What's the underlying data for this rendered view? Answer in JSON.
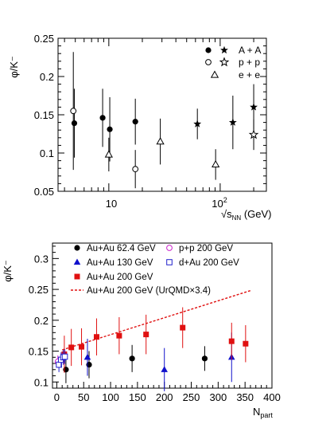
{
  "chart_data": [
    {
      "type": "scatter",
      "title": "",
      "ylabel": "φ/K⁻",
      "xlabel_prefix": "√s",
      "xlabel_sub": "NN",
      "xlabel_suffix": " (GeV)",
      "x_scale": "log",
      "xlim": [
        3.5,
        260
      ],
      "ylim": [
        0.05,
        0.25
      ],
      "y_ticks": [
        0.05,
        0.1,
        0.15,
        0.2,
        0.25
      ],
      "y_tick_labels": [
        "0.05",
        "0.1",
        "0.15",
        "0.2",
        "0.25"
      ],
      "x_tick_labels": [
        {
          "value": 10,
          "label": "10"
        },
        {
          "value": 100,
          "label": "10",
          "sup": "2"
        }
      ],
      "legend": {
        "position": "top-right",
        "rows": [
          {
            "label": "A + A",
            "markers": [
              "filled-circle",
              "filled-star"
            ]
          },
          {
            "label": "p + p",
            "markers": [
              "open-circle",
              "open-star"
            ]
          },
          {
            "label": "e + e",
            "markers": [
              "open-triangle"
            ]
          }
        ]
      },
      "series": [
        {
          "name": "A + A",
          "marker": "filled-circle",
          "points": [
            {
              "x": 4.9,
              "y": 0.139,
              "err": 0.045
            },
            {
              "x": 8.8,
              "y": 0.146,
              "err": 0.038
            },
            {
              "x": 10.2,
              "y": 0.131,
              "err": 0.042
            },
            {
              "x": 17.3,
              "y": 0.141,
              "err": 0.03
            }
          ]
        },
        {
          "name": "A + A",
          "marker": "filled-star",
          "points": [
            {
              "x": 62.4,
              "y": 0.138,
              "err": 0.02
            },
            {
              "x": 130,
              "y": 0.14,
              "err": 0.035
            },
            {
              "x": 200,
              "y": 0.16,
              "err": 0.03
            }
          ]
        },
        {
          "name": "p + p",
          "marker": "open-circle",
          "points": [
            {
              "x": 4.8,
              "y": 0.155,
              "err": 0.077
            },
            {
              "x": 17.3,
              "y": 0.079,
              "err": 0.025
            }
          ]
        },
        {
          "name": "p + p",
          "marker": "open-star",
          "points": [
            {
              "x": 200,
              "y": 0.124,
              "err": 0.02
            }
          ]
        },
        {
          "name": "e + e",
          "marker": "open-triangle",
          "points": [
            {
              "x": 10,
              "y": 0.098,
              "err": 0.022
            },
            {
              "x": 29,
              "y": 0.115,
              "err": 0.03
            },
            {
              "x": 91,
              "y": 0.085,
              "err": 0.02
            }
          ]
        }
      ]
    },
    {
      "type": "scatter",
      "title": "",
      "ylabel": "φ/K⁻",
      "xlabel_main": "N",
      "xlabel_sub": "part",
      "xlim": [
        -8,
        400
      ],
      "ylim": [
        0.09,
        0.325
      ],
      "x_ticks": [
        0,
        50,
        100,
        150,
        200,
        250,
        300,
        350,
        400
      ],
      "x_tick_labels": [
        "0",
        "50",
        "100",
        "150",
        "200",
        "250",
        "300",
        "350",
        "400"
      ],
      "y_ticks": [
        0.1,
        0.15,
        0.2,
        0.25,
        0.3
      ],
      "y_tick_labels": [
        "0.1",
        "0.15",
        "0.2",
        "0.25",
        "0.3"
      ],
      "legend": {
        "position": "top",
        "rows": [
          {
            "label": "Au+Au 62.4 GeV",
            "marker": "filled-circle",
            "color": "#000000"
          },
          {
            "label": "Au+Au 130 GeV",
            "marker": "filled-triangle",
            "color": "#1010cc"
          },
          {
            "label": "Au+Au 200 GeV",
            "marker": "filled-square",
            "color": "#e01010"
          },
          {
            "label": "Au+Au 200 GeV (UrQMD×3.4)",
            "marker": "dashed-line",
            "color": "#e01010"
          },
          {
            "label": "p+p 200 GeV",
            "marker": "open-circle",
            "color": "#cc22cc"
          },
          {
            "label": "d+Au 200 GeV",
            "marker": "open-square",
            "color": "#2020cc"
          }
        ]
      },
      "series": [
        {
          "name": "Au+Au 62.4 GeV",
          "marker": "filled-circle",
          "color": "#000000",
          "points": [
            {
              "x": 17,
              "y": 0.12,
              "err": 0.022
            },
            {
              "x": 60,
              "y": 0.128,
              "err": 0.022
            },
            {
              "x": 140,
              "y": 0.138,
              "err": 0.022
            },
            {
              "x": 275,
              "y": 0.138,
              "err": 0.02
            }
          ]
        },
        {
          "name": "Au+Au 130 GeV",
          "marker": "filled-triangle",
          "color": "#1010cc",
          "points": [
            {
              "x": 57,
              "y": 0.14,
              "err": 0.03
            },
            {
              "x": 200,
              "y": 0.12,
              "err": 0.035
            },
            {
              "x": 325,
              "y": 0.14,
              "err": 0.04
            }
          ]
        },
        {
          "name": "Au+Au 200 GeV",
          "marker": "filled-square",
          "color": "#e01010",
          "points": [
            {
              "x": 14,
              "y": 0.145,
              "err": 0.03
            },
            {
              "x": 27,
              "y": 0.156,
              "err": 0.03
            },
            {
              "x": 46,
              "y": 0.157,
              "err": 0.03
            },
            {
              "x": 74,
              "y": 0.173,
              "err": 0.03
            },
            {
              "x": 116,
              "y": 0.175,
              "err": 0.03
            },
            {
              "x": 166,
              "y": 0.177,
              "err": 0.032
            },
            {
              "x": 234,
              "y": 0.188,
              "err": 0.033
            },
            {
              "x": 325,
              "y": 0.166,
              "err": 0.03
            },
            {
              "x": 351,
              "y": 0.162,
              "err": 0.03
            }
          ]
        },
        {
          "name": "p+p 200 GeV",
          "marker": "open-circle",
          "color": "#cc22cc",
          "points": [
            {
              "x": 2,
              "y": 0.133,
              "err": 0.01
            }
          ]
        },
        {
          "name": "d+Au 200 GeV",
          "marker": "open-square",
          "color": "#2020cc",
          "points": [
            {
              "x": 4,
              "y": 0.128,
              "err": 0.012
            },
            {
              "x": 8,
              "y": 0.136,
              "err": 0.012
            },
            {
              "x": 12,
              "y": 0.14,
              "err": 0.012
            },
            {
              "x": 15,
              "y": 0.141,
              "err": 0.012
            }
          ]
        },
        {
          "name": "Au+Au 200 GeV (UrQMD×3.4)",
          "marker": "dashed-line",
          "color": "#e01010",
          "line": [
            {
              "x": 10,
              "y": 0.152
            },
            {
              "x": 360,
              "y": 0.248
            }
          ]
        }
      ]
    }
  ]
}
